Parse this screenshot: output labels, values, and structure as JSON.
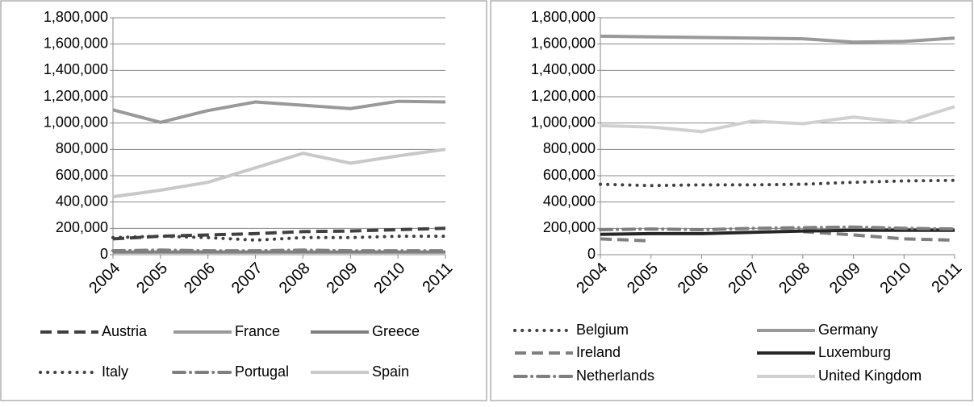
{
  "chart_data": [
    {
      "type": "line",
      "categories": [
        "2004",
        "2005",
        "2006",
        "2007",
        "2008",
        "2009",
        "2010",
        "2011"
      ],
      "ylim": [
        0,
        1800000
      ],
      "yticks": [
        0,
        {
          "value": 200000,
          "label": "200,000"
        },
        {
          "value": 400000,
          "label": "400,000"
        },
        {
          "value": 600000,
          "label": "600,000"
        },
        {
          "value": 800000,
          "label": "800,000"
        },
        {
          "value": 1000000,
          "label": "1,000,000"
        },
        {
          "value": 1200000,
          "label": "1,200,000"
        },
        {
          "value": 1400000,
          "label": "1,400,000"
        },
        {
          "value": 1600000,
          "label": "1,600,000"
        },
        {
          "value": 1800000,
          "label": "1,800,000"
        }
      ],
      "grid": true,
      "legend": "bottom",
      "series": [
        {
          "name": "Austria",
          "color": "#404040",
          "line_style": "dashed",
          "values": [
            120000,
            140000,
            150000,
            160000,
            175000,
            180000,
            190000,
            200000
          ]
        },
        {
          "name": "France",
          "color": "#999999",
          "line_style": "solid",
          "values": [
            1100000,
            1005000,
            1095000,
            1160000,
            1135000,
            1110000,
            1165000,
            1160000
          ]
        },
        {
          "name": "Greece",
          "color": "#7f7f7f",
          "line_style": "solid",
          "values": [
            20000,
            20000,
            20000,
            20000,
            20000,
            20000,
            20000,
            20000
          ]
        },
        {
          "name": "Italy",
          "color": "#404040",
          "line_style": "dotted",
          "values": [
            130000,
            140000,
            130000,
            110000,
            130000,
            130000,
            140000,
            140000
          ]
        },
        {
          "name": "Portugal",
          "color": "#7f7f7f",
          "line_style": "dash-dot",
          "values": [
            30000,
            35000,
            30000,
            30000,
            35000,
            30000,
            30000,
            30000
          ]
        },
        {
          "name": "Spain",
          "color": "#c8c8c8",
          "line_style": "solid",
          "values": [
            440000,
            490000,
            550000,
            660000,
            770000,
            695000,
            750000,
            800000
          ]
        }
      ]
    },
    {
      "type": "line",
      "categories": [
        "2004",
        "2005",
        "2006",
        "2007",
        "2008",
        "2009",
        "2010",
        "2011"
      ],
      "ylim": [
        0,
        1800000
      ],
      "yticks": [
        0,
        {
          "value": 200000,
          "label": "200,000"
        },
        {
          "value": 400000,
          "label": "400,000"
        },
        {
          "value": 600000,
          "label": "600,000"
        },
        {
          "value": 800000,
          "label": "800,000"
        },
        {
          "value": 1000000,
          "label": "1,000,000"
        },
        {
          "value": 1200000,
          "label": "1,200,000"
        },
        {
          "value": 1400000,
          "label": "1,400,000"
        },
        {
          "value": 1600000,
          "label": "1,600,000"
        },
        {
          "value": 1800000,
          "label": "1,800,000"
        }
      ],
      "grid": true,
      "legend": "bottom",
      "series": [
        {
          "name": "Belgium",
          "color": "#404040",
          "line_style": "dotted",
          "values": [
            535000,
            525000,
            530000,
            530000,
            535000,
            550000,
            560000,
            565000
          ]
        },
        {
          "name": "Germany",
          "color": "#999999",
          "line_style": "solid",
          "values": [
            1660000,
            1655000,
            1650000,
            1645000,
            1640000,
            1615000,
            1620000,
            1645000
          ]
        },
        {
          "name": "Ireland",
          "color": "#7f7f7f",
          "line_style": "dashed",
          "values": [
            120000,
            105000,
            null,
            null,
            175000,
            150000,
            120000,
            110000
          ]
        },
        {
          "name": "Luxemburg",
          "color": "#262626",
          "line_style": "solid",
          "values": [
            155000,
            160000,
            160000,
            170000,
            180000,
            185000,
            185000,
            185000
          ]
        },
        {
          "name": "Netherlands",
          "color": "#7f7f7f",
          "line_style": "dash-dot",
          "values": [
            190000,
            195000,
            190000,
            200000,
            205000,
            210000,
            200000,
            195000
          ]
        },
        {
          "name": "United Kingdom",
          "color": "#d0d0d0",
          "line_style": "solid",
          "values": [
            980000,
            970000,
            935000,
            1015000,
            995000,
            1045000,
            1005000,
            1125000
          ]
        }
      ]
    }
  ]
}
